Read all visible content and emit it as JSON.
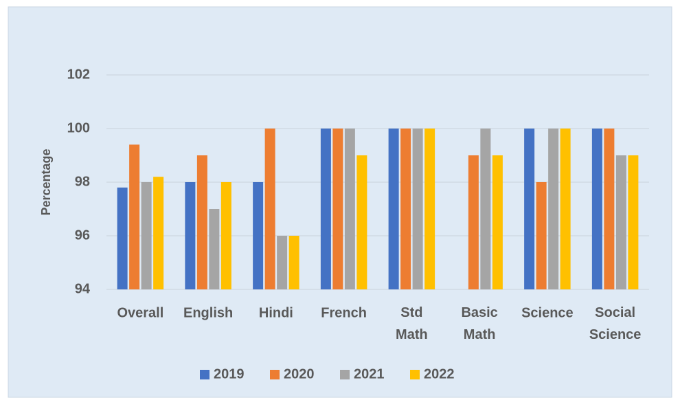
{
  "chart_data": {
    "type": "bar",
    "y_label": "Percentage",
    "categories": [
      "Overall",
      "English",
      "Hindi",
      "French",
      "Std Math",
      "Basic Math",
      "Science",
      "Social Science"
    ],
    "series": [
      {
        "name": "2019",
        "color": "#4472c4",
        "values": [
          97.8,
          98,
          98,
          100,
          100,
          null,
          100,
          100
        ]
      },
      {
        "name": "2020",
        "color": "#ed7d31",
        "values": [
          99.4,
          99,
          100,
          100,
          100,
          99,
          98,
          100
        ]
      },
      {
        "name": "2021",
        "color": "#a5a5a5",
        "values": [
          98,
          97,
          96,
          100,
          100,
          100,
          100,
          99
        ]
      },
      {
        "name": "2022",
        "color": "#ffc000",
        "values": [
          98.2,
          98,
          96,
          99,
          100,
          99,
          100,
          99
        ]
      }
    ],
    "ylim": [
      94,
      104
    ],
    "yticks": [
      94,
      96,
      98,
      100,
      102
    ],
    "grid": true,
    "legend": "bottom"
  }
}
